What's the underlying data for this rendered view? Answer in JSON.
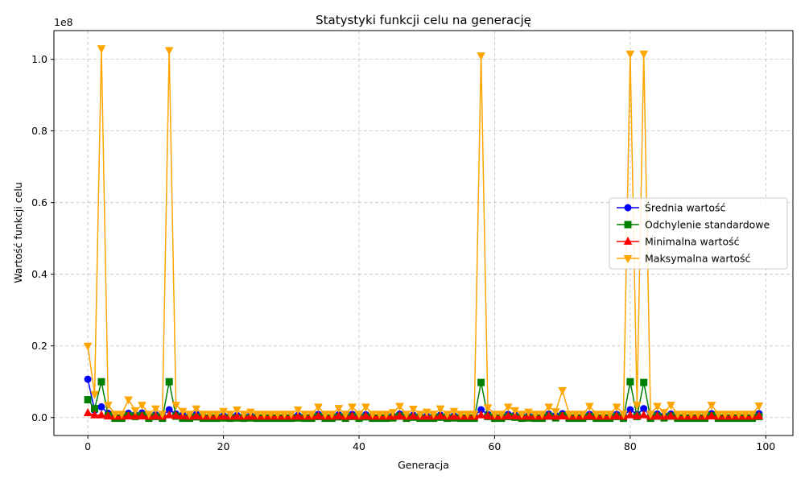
{
  "chart_data": {
    "type": "line",
    "title": "Statystyki funkcji celu na generację",
    "xlabel": "Generacja",
    "ylabel": "Wartość funkcji celu",
    "y_offset_label": "1e8",
    "xlim": [
      -5,
      104
    ],
    "ylim": [
      -5000000,
      108000000
    ],
    "x_ticks": [
      0,
      20,
      40,
      60,
      80,
      100
    ],
    "x_tick_labels": [
      "0",
      "20",
      "40",
      "60",
      "80",
      "100"
    ],
    "y_ticks": [
      0,
      20000000,
      40000000,
      60000000,
      80000000,
      100000000
    ],
    "y_tick_labels": [
      "0.0",
      "0.2",
      "0.4",
      "0.6",
      "0.8",
      "1.0"
    ],
    "grid": true,
    "legend_position": "center-right",
    "x": [
      0,
      1,
      2,
      3,
      4,
      5,
      6,
      7,
      8,
      9,
      10,
      11,
      12,
      13,
      14,
      15,
      16,
      17,
      18,
      19,
      20,
      21,
      22,
      23,
      24,
      25,
      26,
      27,
      28,
      29,
      30,
      31,
      32,
      33,
      34,
      35,
      36,
      37,
      38,
      39,
      40,
      41,
      42,
      43,
      44,
      45,
      46,
      47,
      48,
      49,
      50,
      51,
      52,
      53,
      54,
      55,
      56,
      57,
      58,
      59,
      60,
      61,
      62,
      63,
      64,
      65,
      66,
      67,
      68,
      69,
      70,
      71,
      72,
      73,
      74,
      75,
      76,
      77,
      78,
      79,
      80,
      81,
      82,
      83,
      84,
      85,
      86,
      87,
      88,
      89,
      90,
      91,
      92,
      93,
      94,
      95,
      96,
      97,
      98,
      99
    ],
    "series": [
      {
        "name": "Średnia wartość",
        "color": "#0000ff",
        "marker": "circle",
        "values": [
          10700000,
          2000000,
          3000000,
          1200000,
          400000,
          400000,
          1200000,
          800000,
          1300000,
          400000,
          800000,
          400000,
          2200000,
          1000000,
          700000,
          400000,
          900000,
          400000,
          400000,
          400000,
          500000,
          400000,
          600000,
          400000,
          500000,
          400000,
          400000,
          400000,
          400000,
          400000,
          400000,
          600000,
          400000,
          400000,
          900000,
          400000,
          400000,
          800000,
          400000,
          900000,
          400000,
          800000,
          400000,
          400000,
          400000,
          500000,
          1000000,
          400000,
          700000,
          400000,
          400000,
          400000,
          700000,
          400000,
          500000,
          400000,
          400000,
          400000,
          2200000,
          900000,
          400000,
          400000,
          900000,
          700000,
          400000,
          500000,
          400000,
          400000,
          1000000,
          600000,
          1100000,
          400000,
          400000,
          400000,
          900000,
          400000,
          400000,
          400000,
          900000,
          400000,
          2200000,
          900000,
          2500000,
          400000,
          1000000,
          600000,
          1000000,
          400000,
          400000,
          400000,
          400000,
          400000,
          1100000,
          400000,
          400000,
          400000,
          400000,
          400000,
          400000,
          1100000
        ]
      },
      {
        "name": "Odchylenie standardowe",
        "color": "#008000",
        "marker": "square",
        "values": [
          5000000,
          2500000,
          10000000,
          500000,
          -200000,
          -200000,
          500000,
          300000,
          600000,
          -200000,
          300000,
          -200000,
          10000000,
          400000,
          -200000,
          -200000,
          200000,
          -200000,
          -200000,
          -200000,
          -100000,
          -200000,
          -100000,
          -200000,
          -100000,
          -200000,
          -200000,
          -200000,
          -200000,
          -200000,
          -200000,
          -100000,
          -200000,
          -200000,
          300000,
          -200000,
          -200000,
          200000,
          -200000,
          300000,
          -200000,
          200000,
          -200000,
          -200000,
          -200000,
          -100000,
          400000,
          -200000,
          100000,
          -200000,
          -200000,
          -200000,
          100000,
          -200000,
          -100000,
          -200000,
          -200000,
          -200000,
          9800000,
          300000,
          -200000,
          -200000,
          300000,
          100000,
          -200000,
          -100000,
          -200000,
          -200000,
          400000,
          -100000,
          500000,
          -200000,
          -200000,
          -200000,
          300000,
          -200000,
          -200000,
          -200000,
          300000,
          -200000,
          10000000,
          300000,
          9800000,
          -200000,
          400000,
          -100000,
          400000,
          -200000,
          -200000,
          -200000,
          -200000,
          -200000,
          500000,
          -200000,
          -200000,
          -200000,
          -200000,
          -200000,
          -200000,
          300000
        ]
      },
      {
        "name": "Minimalna wartość",
        "color": "#ff0000",
        "marker": "triangle-up",
        "values": [
          1300000,
          700000,
          700000,
          400000,
          300000,
          300000,
          400000,
          400000,
          400000,
          300000,
          400000,
          300000,
          700000,
          500000,
          400000,
          300000,
          400000,
          300000,
          300000,
          300000,
          300000,
          300000,
          300000,
          300000,
          300000,
          300000,
          300000,
          300000,
          300000,
          300000,
          300000,
          300000,
          300000,
          300000,
          400000,
          300000,
          300000,
          400000,
          300000,
          400000,
          300000,
          400000,
          300000,
          300000,
          300000,
          300000,
          400000,
          300000,
          400000,
          300000,
          300000,
          300000,
          400000,
          300000,
          300000,
          300000,
          300000,
          300000,
          700000,
          400000,
          300000,
          300000,
          400000,
          400000,
          300000,
          300000,
          300000,
          300000,
          400000,
          300000,
          400000,
          300000,
          300000,
          300000,
          400000,
          300000,
          300000,
          300000,
          400000,
          300000,
          700000,
          400000,
          700000,
          300000,
          400000,
          300000,
          400000,
          300000,
          300000,
          300000,
          300000,
          300000,
          400000,
          300000,
          300000,
          300000,
          300000,
          300000,
          300000,
          400000
        ]
      },
      {
        "name": "Maksymalna wartość",
        "color": "#ffa500",
        "marker": "triangle-down",
        "values": [
          20000000,
          6500000,
          103000000,
          3500000,
          1000000,
          1000000,
          5000000,
          2000000,
          3500000,
          1000000,
          2500000,
          1000000,
          102500000,
          3500000,
          1800000,
          1000000,
          2500000,
          1000000,
          1000000,
          1000000,
          1800000,
          1000000,
          2200000,
          1000000,
          1600000,
          1000000,
          1000000,
          1000000,
          1000000,
          1000000,
          1000000,
          2200000,
          1000000,
          1000000,
          3000000,
          1000000,
          1000000,
          2600000,
          1000000,
          3000000,
          1000000,
          3000000,
          1000000,
          1000000,
          1000000,
          1500000,
          3200000,
          1000000,
          2400000,
          1000000,
          1600000,
          1000000,
          2500000,
          1000000,
          1800000,
          1000000,
          1000000,
          1000000,
          101000000,
          2800000,
          1000000,
          1000000,
          3000000,
          2000000,
          1000000,
          1600000,
          1000000,
          1000000,
          3000000,
          1700000,
          7600000,
          1000000,
          1000000,
          1000000,
          3200000,
          1000000,
          1000000,
          1000000,
          3000000,
          1000000,
          101500000,
          3500000,
          101500000,
          1000000,
          3200000,
          1500000,
          3500000,
          1000000,
          1000000,
          1000000,
          1000000,
          1000000,
          3500000,
          1000000,
          1000000,
          1000000,
          1000000,
          1000000,
          1000000,
          3300000
        ]
      }
    ]
  }
}
